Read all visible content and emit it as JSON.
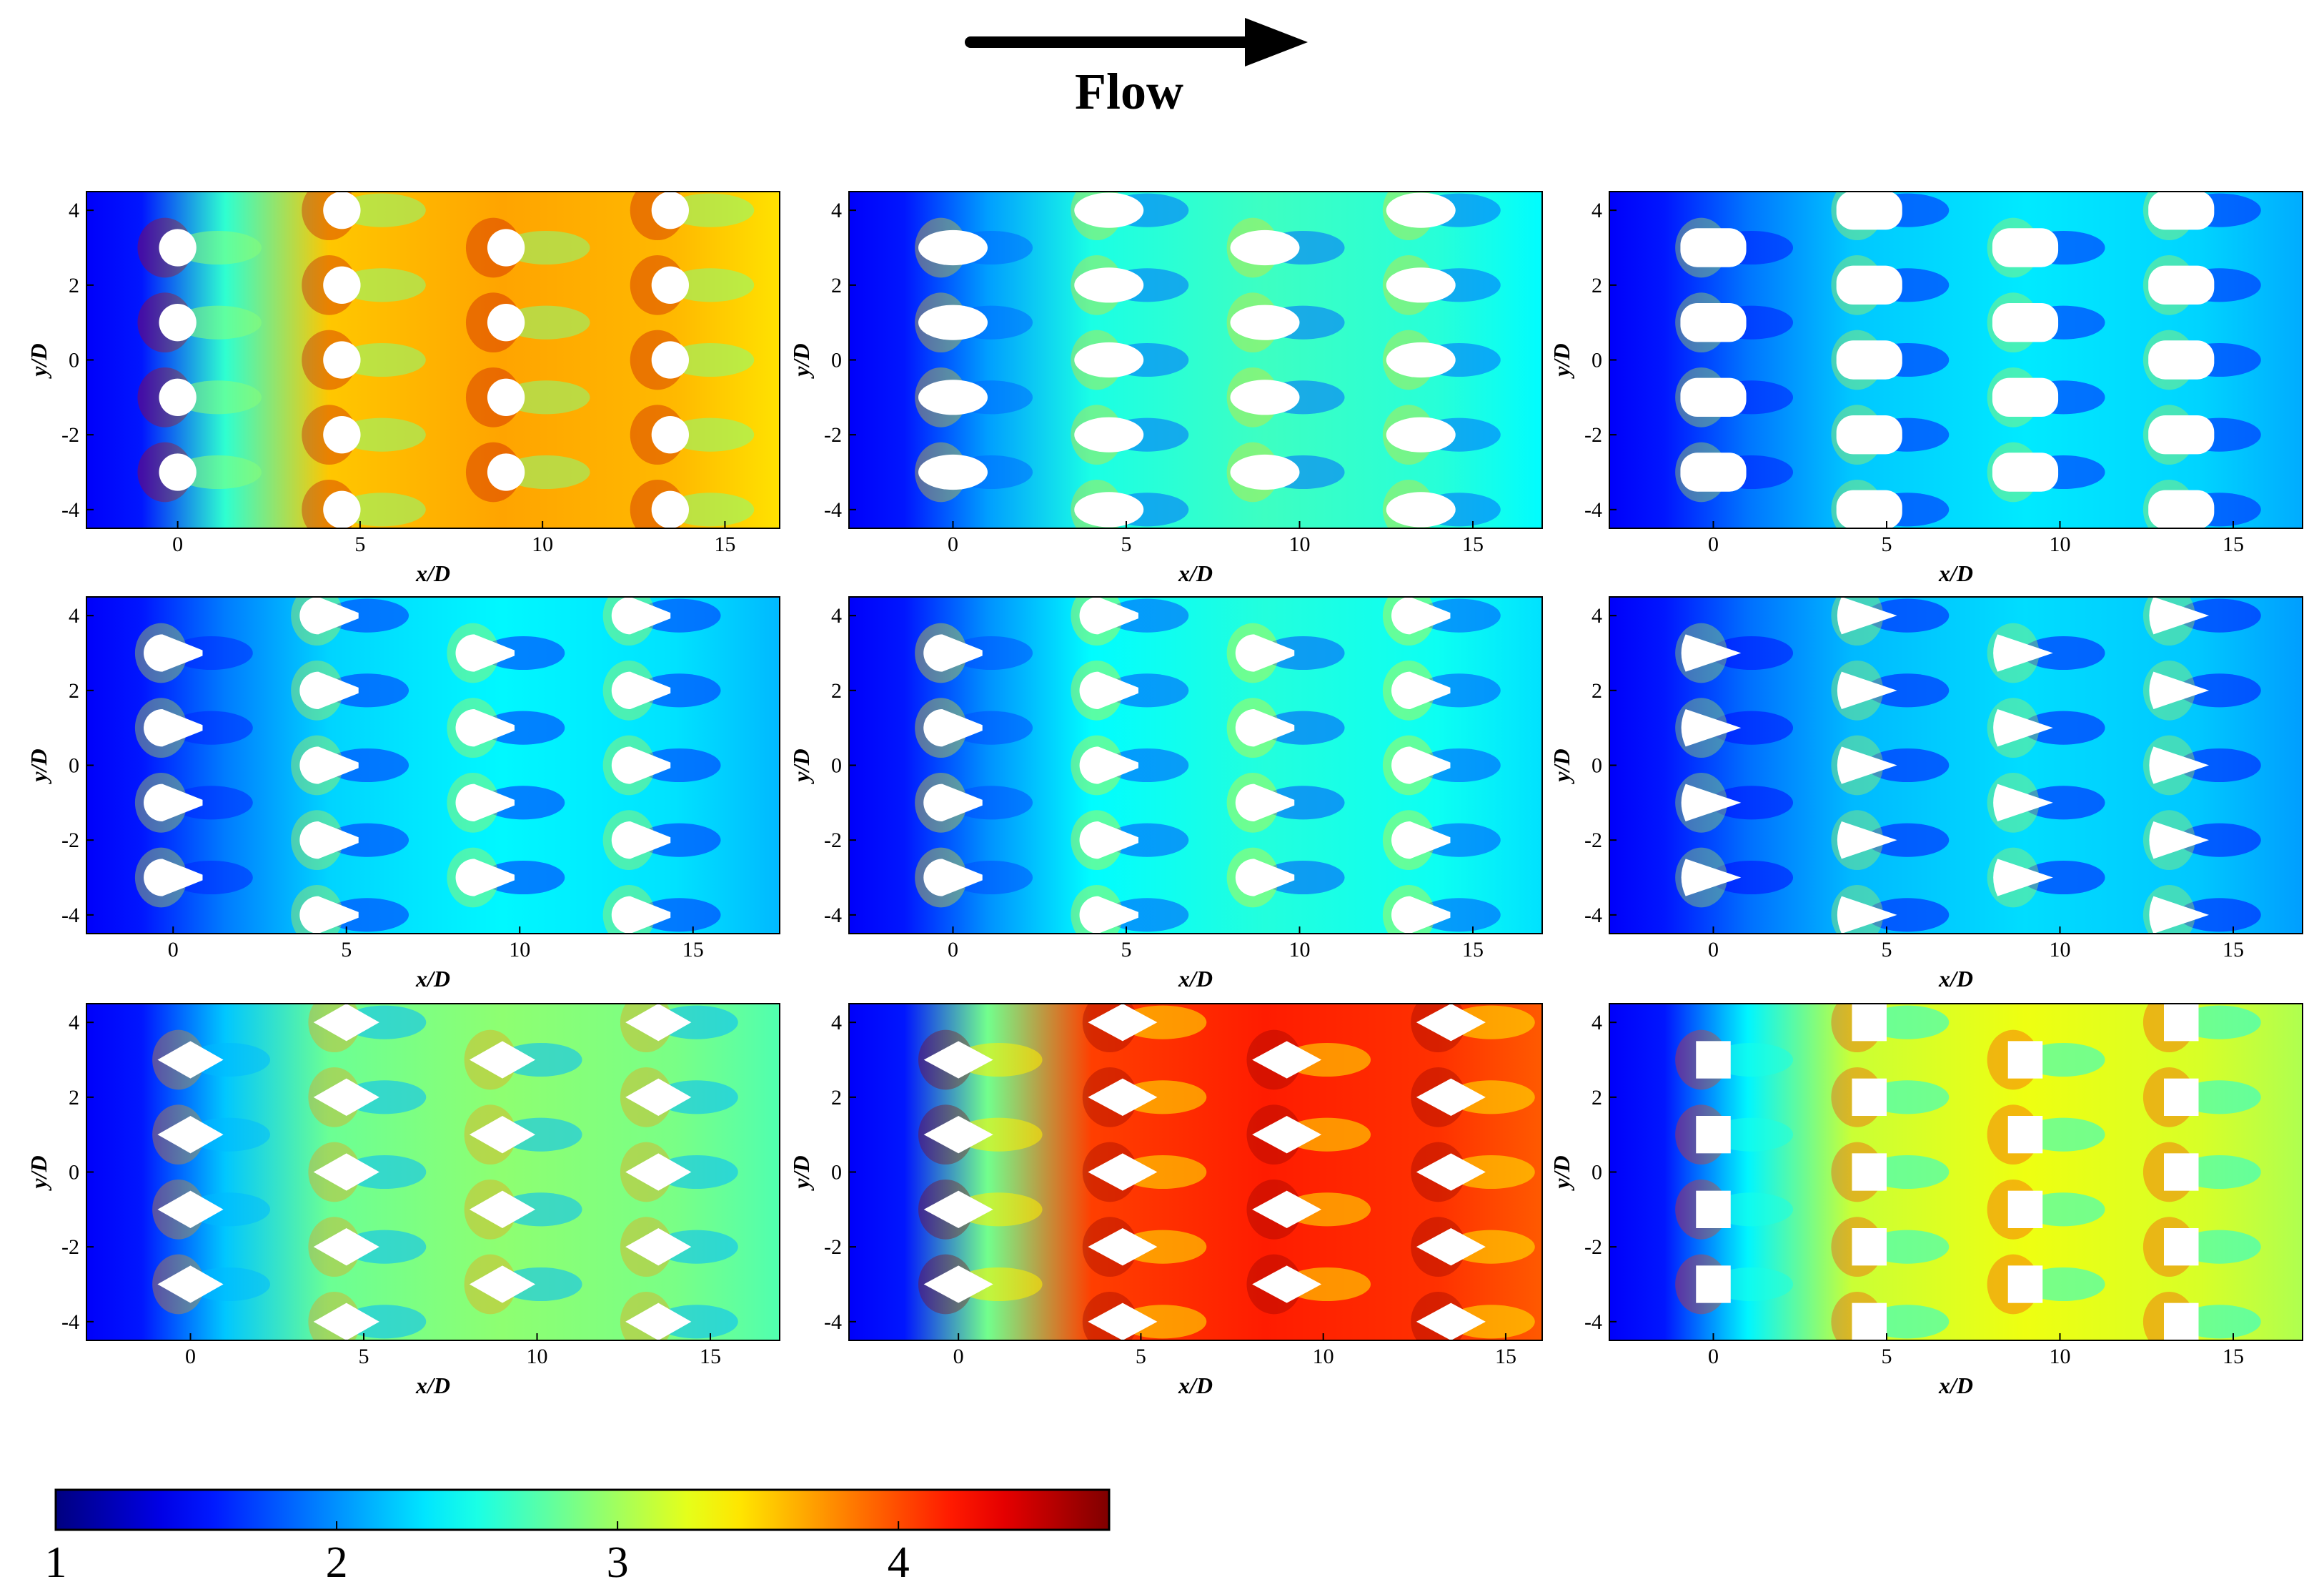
{
  "flow_label": "Flow",
  "chart_data": {
    "type": "heatmap",
    "colormap": "jet",
    "colorbar": {
      "range": [
        1,
        4.75
      ],
      "ticks": [
        1,
        2,
        3,
        4
      ],
      "tick_labels": [
        "1",
        "2",
        "3",
        "4"
      ]
    },
    "panels": [
      {
        "shape": "circle",
        "level": 3.6,
        "xlabel": "x/D",
        "ylabel": "y/D",
        "xlim": [
          -2.5,
          16.5
        ],
        "ylim": [
          -4.5,
          4.5
        ],
        "xticks": [
          "0",
          "5",
          "10",
          "15"
        ],
        "yticks": [
          "4",
          "2",
          "0",
          "-2",
          "-4"
        ],
        "obstacle_columns": [
          0,
          4.5,
          9,
          13.5
        ]
      },
      {
        "shape": "ellipse",
        "level": 2.55,
        "xlabel": "x/D",
        "ylabel": "y/D",
        "xlim": [
          -3,
          17
        ],
        "ylim": [
          -4.5,
          4.5
        ],
        "xticks": [
          "0",
          "5",
          "10",
          "15"
        ],
        "yticks": [
          "4",
          "2",
          "0",
          "-2",
          "-4"
        ],
        "obstacle_columns": [
          0,
          4.5,
          9,
          13.5
        ]
      },
      {
        "shape": "stadium",
        "level": 2.25,
        "xlabel": "x/D",
        "ylabel": "y/D",
        "xlim": [
          -3,
          17
        ],
        "ylim": [
          -4.5,
          4.5
        ],
        "xticks": [
          "0",
          "5",
          "10",
          "15"
        ],
        "yticks": [
          "4",
          "2",
          "0",
          "-2",
          "-4"
        ],
        "obstacle_columns": [
          0,
          4.5,
          9,
          13.5
        ]
      },
      {
        "shape": "teardrop",
        "level": 2.3,
        "xlabel": "x/D",
        "ylabel": "y/D",
        "xlim": [
          -2.5,
          17.5
        ],
        "ylim": [
          -4.5,
          4.5
        ],
        "xticks": [
          "0",
          "5",
          "10",
          "15"
        ],
        "yticks": [
          "4",
          "2",
          "0",
          "-2",
          "-4"
        ],
        "obstacle_columns": [
          0,
          4.5,
          9,
          13.5
        ]
      },
      {
        "shape": "teardrop",
        "level": 2.45,
        "xlabel": "x/D",
        "ylabel": "y/D",
        "xlim": [
          -3,
          17
        ],
        "ylim": [
          -4.5,
          4.5
        ],
        "xticks": [
          "0",
          "5",
          "10",
          "15"
        ],
        "yticks": [
          "4",
          "2",
          "0",
          "-2",
          "-4"
        ],
        "obstacle_columns": [
          0,
          4.5,
          9,
          13.5
        ]
      },
      {
        "shape": "triangle",
        "level": 2.2,
        "xlabel": "x/D",
        "ylabel": "y/D",
        "xlim": [
          -3,
          17
        ],
        "ylim": [
          -4.5,
          4.5
        ],
        "xticks": [
          "0",
          "5",
          "10",
          "15"
        ],
        "yticks": [
          "4",
          "2",
          "0",
          "-2",
          "-4"
        ],
        "obstacle_columns": [
          0,
          4.5,
          9,
          13.5
        ]
      },
      {
        "shape": "diamond",
        "level": 2.85,
        "xlabel": "x/D",
        "ylabel": "y/D",
        "xlim": [
          -3,
          17
        ],
        "ylim": [
          -4.5,
          4.5
        ],
        "xticks": [
          "0",
          "5",
          "10",
          "15"
        ],
        "yticks": [
          "4",
          "2",
          "0",
          "-2",
          "-4"
        ],
        "obstacle_columns": [
          0,
          4.5,
          9,
          13.5
        ]
      },
      {
        "shape": "diamond",
        "level": 4.1,
        "xlabel": "x/D",
        "ylabel": "y/D",
        "xlim": [
          -3,
          16
        ],
        "ylim": [
          -4.5,
          4.5
        ],
        "xticks": [
          "0",
          "5",
          "10",
          "15"
        ],
        "yticks": [
          "4",
          "2",
          "0",
          "-2",
          "-4"
        ],
        "obstacle_columns": [
          0,
          4.5,
          9,
          13.5
        ]
      },
      {
        "shape": "square",
        "level": 3.2,
        "xlabel": "x/D",
        "ylabel": "y/D",
        "xlim": [
          -3,
          17
        ],
        "ylim": [
          -4.5,
          4.5
        ],
        "xticks": [
          "0",
          "5",
          "10",
          "15"
        ],
        "yticks": [
          "4",
          "2",
          "0",
          "-2",
          "-4"
        ],
        "obstacle_columns": [
          0,
          4.5,
          9,
          13.5
        ]
      }
    ]
  }
}
